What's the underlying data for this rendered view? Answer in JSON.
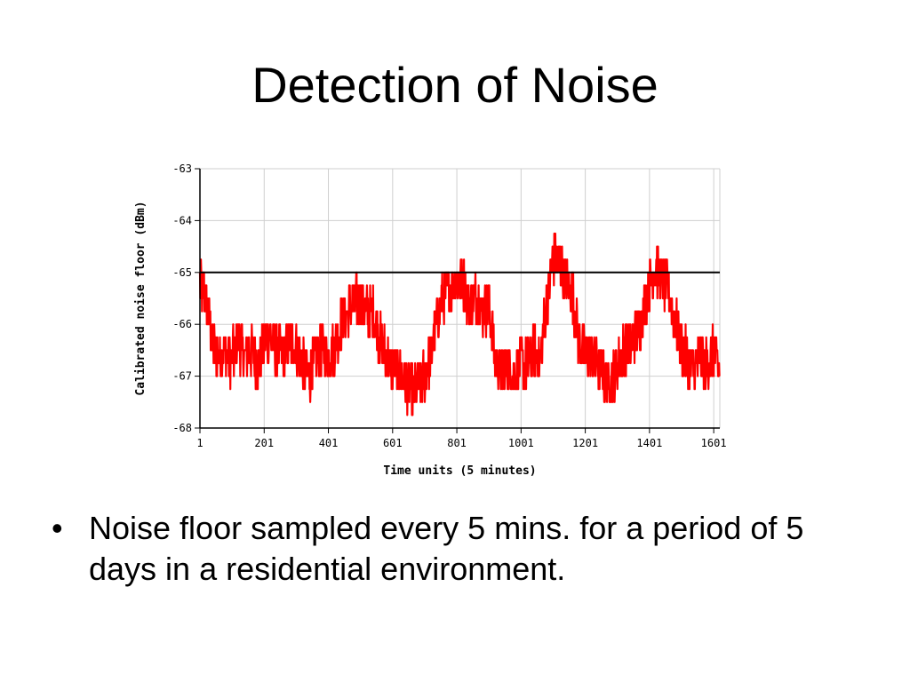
{
  "slide": {
    "title": "Detection of Noise",
    "bullet_glyph": "•",
    "bullets": [
      "Noise floor sampled every 5 mins. for a period of 5 days in a residential environment."
    ]
  },
  "chart_data": {
    "type": "line",
    "title": "",
    "xlabel": "Time units (5 minutes)",
    "ylabel": "Calibrated noise floor (dBm)",
    "xlim": [
      1,
      1620
    ],
    "ylim": [
      -68,
      -63
    ],
    "x_ticks": [
      1,
      201,
      401,
      601,
      801,
      1001,
      1201,
      1401,
      1601
    ],
    "y_ticks": [
      -63,
      -64,
      -65,
      -66,
      -67,
      -68
    ],
    "grid": true,
    "series": [
      {
        "color": "#ff0000",
        "x": [
          1,
          20,
          40,
          60,
          80,
          100,
          120,
          140,
          160,
          180,
          200,
          220,
          240,
          260,
          280,
          300,
          320,
          340,
          360,
          380,
          400,
          420,
          440,
          460,
          480,
          500,
          520,
          540,
          560,
          580,
          600,
          620,
          640,
          660,
          680,
          700,
          720,
          740,
          760,
          780,
          800,
          820,
          840,
          860,
          880,
          900,
          920,
          940,
          960,
          980,
          1000,
          1020,
          1040,
          1060,
          1080,
          1100,
          1120,
          1140,
          1160,
          1180,
          1200,
          1220,
          1240,
          1260,
          1280,
          1300,
          1320,
          1340,
          1360,
          1380,
          1400,
          1420,
          1440,
          1460,
          1480,
          1500,
          1520,
          1540,
          1560,
          1580,
          1600,
          1620
        ],
        "values": [
          -65.2,
          -65.5,
          -66.4,
          -66.6,
          -66.5,
          -66.7,
          -66.3,
          -66.6,
          -66.5,
          -66.8,
          -66.4,
          -66.2,
          -66.5,
          -66.6,
          -66.3,
          -66.4,
          -66.8,
          -67.0,
          -66.7,
          -66.5,
          -66.6,
          -66.4,
          -66.0,
          -65.8,
          -65.6,
          -65.5,
          -65.8,
          -65.7,
          -66.3,
          -66.6,
          -66.8,
          -66.9,
          -67.1,
          -67.3,
          -67.2,
          -67.0,
          -66.6,
          -65.8,
          -65.5,
          -65.3,
          -65.1,
          -65.2,
          -65.6,
          -65.4,
          -65.8,
          -65.6,
          -66.7,
          -66.9,
          -66.8,
          -67.0,
          -66.7,
          -66.8,
          -66.5,
          -66.7,
          -65.6,
          -64.7,
          -64.8,
          -65.2,
          -65.4,
          -66.3,
          -66.6,
          -66.5,
          -66.8,
          -67.0,
          -67.2,
          -66.8,
          -66.5,
          -66.4,
          -66.2,
          -65.8,
          -65.3,
          -64.9,
          -65.1,
          -65.4,
          -65.9,
          -66.4,
          -66.7,
          -66.9,
          -66.6,
          -66.8,
          -66.5,
          -66.9
        ]
      }
    ],
    "reference_line": {
      "y": -65,
      "color": "#000000"
    }
  }
}
